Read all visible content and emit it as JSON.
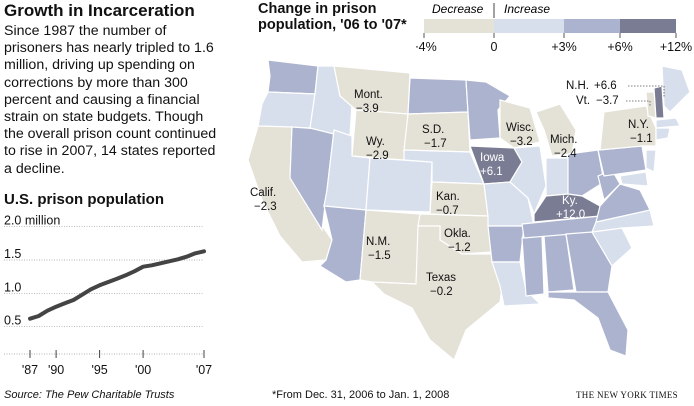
{
  "left_panel": {
    "headline": "Growth in Incarceration",
    "intro": "Since 1987 the number of prisoners has nearly tripled to 1.6 million, driving up spending on corrections by more than 300 percent and causing a financial strain on state budgets. Though the overall prison count continued to rise in 2007, 14 states reported a decline.",
    "line_title": "U.S. prison population",
    "source": "Source: The Pew Charitable Trusts"
  },
  "map_panel": {
    "title": "Change in prison population, '06 to '07*",
    "footnote": "*From Dec. 31, 2006 to Jan. 1, 2008",
    "credit": "THE NEW YORK TIMES"
  },
  "colors": {
    "decrease": "#e4e1d6",
    "inc_0_3": "#d7dfec",
    "inc_3_6": "#acb3cf",
    "inc_6_12": "#7a7c93",
    "line": "#444444"
  },
  "chart_data": [
    {
      "type": "line",
      "title": "U.S. prison population",
      "y_tick_labels": [
        "2.0 million",
        "1.5",
        "1.0",
        "0.5"
      ],
      "y_ticks": [
        2.0,
        1.5,
        1.0,
        0.5
      ],
      "x_tick_labels": [
        "'87",
        "'90",
        "'95",
        "'00",
        "'07"
      ],
      "x_ticks": [
        1987,
        1990,
        1995,
        2000,
        2007
      ],
      "ylim": [
        0.3,
        2.1
      ],
      "xlim": [
        1987,
        2007
      ],
      "grid": true,
      "series": [
        {
          "x": [
            1987,
            1988,
            1989,
            1990,
            1991,
            1992,
            1993,
            1994,
            1995,
            1996,
            1997,
            1998,
            1999,
            2000,
            2001,
            2002,
            2003,
            2004,
            2005,
            2006,
            2007
          ],
          "values": [
            0.59,
            0.63,
            0.71,
            0.77,
            0.82,
            0.87,
            0.95,
            1.03,
            1.09,
            1.14,
            1.19,
            1.24,
            1.3,
            1.37,
            1.39,
            1.42,
            1.45,
            1.48,
            1.52,
            1.57,
            1.6
          ]
        }
      ]
    },
    {
      "type": "choropleth",
      "title": "Change in prison population, '06 to '07*",
      "legend": {
        "headers": [
          "Decrease",
          "Increase"
        ],
        "bins": [
          "−4%",
          "0",
          "+3%",
          "+6%",
          "+12%"
        ]
      },
      "labeled_states": [
        {
          "state": "Mont.",
          "value": "−3.9"
        },
        {
          "state": "Wy.",
          "value": "−2.9"
        },
        {
          "state": "S.D.",
          "value": "−1.7"
        },
        {
          "state": "Wisc.",
          "value": "−3.2"
        },
        {
          "state": "Mich.",
          "value": "−2.4"
        },
        {
          "state": "N.Y.",
          "value": "−1.1"
        },
        {
          "state": "N.H.",
          "value": "+6.6"
        },
        {
          "state": "Vt.",
          "value": "−3.7"
        },
        {
          "state": "Calif.",
          "value": "−2.3"
        },
        {
          "state": "Iowa",
          "value": "+6.1"
        },
        {
          "state": "Kan.",
          "value": "−0.7"
        },
        {
          "state": "Ky.",
          "value": "+12.0"
        },
        {
          "state": "Okla.",
          "value": "−1.2"
        },
        {
          "state": "N.M.",
          "value": "−1.5"
        },
        {
          "state": "Texas",
          "value": "−0.2"
        }
      ]
    }
  ]
}
